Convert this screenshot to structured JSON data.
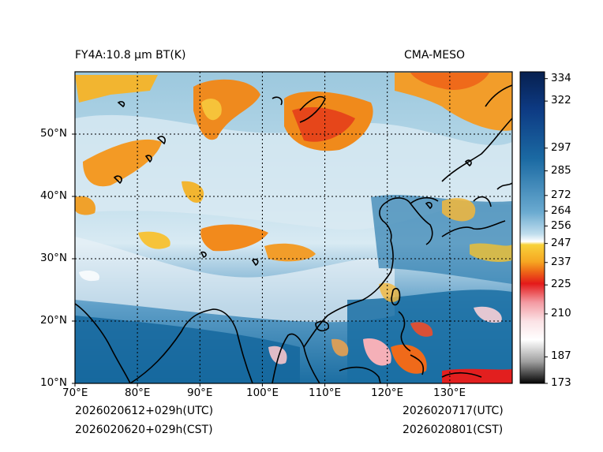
{
  "header": {
    "left_title": "FY4A:10.8 µm BT(K)",
    "right_title": "CMA-MESO"
  },
  "footer": {
    "left_line1": "2026020612+029h(UTC)",
    "left_line2": "2026020620+029h(CST)",
    "right_line1": "2026020717(UTC)",
    "right_line2": "2026020801(CST)"
  },
  "map": {
    "lon_range": [
      70,
      140
    ],
    "lat_range": [
      10,
      60
    ],
    "lon_ticks": [
      "70°E",
      "80°E",
      "90°E",
      "100°E",
      "110°E",
      "120°E",
      "130°E"
    ],
    "lat_ticks": [
      "10°N",
      "20°N",
      "30°N",
      "40°N",
      "50°N"
    ]
  },
  "colorbar": {
    "min": 173,
    "max": 340,
    "ticks": [
      "334",
      "322",
      "297",
      "285",
      "272",
      "264",
      "256",
      "247",
      "237",
      "225",
      "210",
      "187",
      "173"
    ],
    "tick_values": [
      334,
      322,
      297,
      285,
      272,
      264,
      256,
      247,
      237,
      225,
      210,
      187,
      173
    ]
  },
  "colors": {
    "deep_blue": "#0b2a6b",
    "ocean_blue": "#1a6fa3",
    "mid_blue": "#6fa9cc",
    "light_blue": "#c9e1ee",
    "white": "#ffffff",
    "yellow": "#f2c12e",
    "orange": "#ef7d1a",
    "red": "#e21f1f",
    "pink": "#f7b9c0",
    "gray": "#8c8c8c",
    "black": "#000000"
  }
}
